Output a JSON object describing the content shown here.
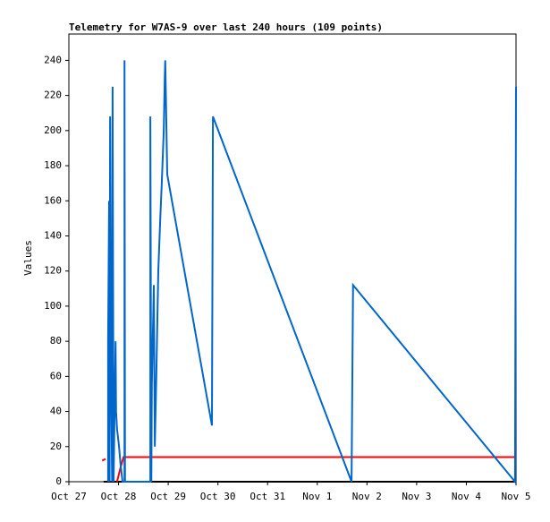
{
  "chart_data": {
    "type": "line",
    "title": "Telemetry for W7AS-9 over last 240 hours (109 points)",
    "y_label": "Values",
    "xlim": [
      0,
      9
    ],
    "xticks": [
      {
        "value": 0,
        "label": "Oct 27"
      },
      {
        "value": 1,
        "label": "Oct 28"
      },
      {
        "value": 2,
        "label": "Oct 29"
      },
      {
        "value": 3,
        "label": "Oct 30"
      },
      {
        "value": 4,
        "label": "Oct 31"
      },
      {
        "value": 5,
        "label": "Nov 1"
      },
      {
        "value": 6,
        "label": "Nov 2"
      },
      {
        "value": 7,
        "label": "Nov 3"
      },
      {
        "value": 8,
        "label": "Nov 4"
      },
      {
        "value": 9,
        "label": "Nov 5"
      }
    ],
    "ylim": [
      0,
      255
    ],
    "yticks": [
      0,
      20,
      40,
      60,
      80,
      100,
      120,
      140,
      160,
      180,
      200,
      220,
      240
    ],
    "series": [
      {
        "color": "#000000",
        "x": [
          0.7,
          9
        ],
        "values": [
          0,
          0
        ]
      },
      {
        "color": "#ff0000",
        "x": [
          0.67,
          0.74,
          0.8,
          0.97,
          1.04,
          1.1,
          9
        ],
        "values": [
          12,
          13,
          null,
          0,
          8,
          14,
          14
        ]
      },
      {
        "color": "#0066cc",
        "x": [
          0.79,
          0.79,
          0.81,
          0.82,
          0.83,
          0.85,
          0.87,
          0.88,
          0.9,
          0.94,
          0.95,
          0.97,
          1.01,
          1.04,
          1.08,
          1.12,
          1.12,
          1.13,
          1.64,
          1.64,
          1.66,
          1.67,
          1.71,
          1.73,
          1.76,
          1.8,
          1.84,
          1.87,
          1.91,
          1.93,
          1.94,
          1.98,
          2.88,
          2.9,
          5.69,
          5.72,
          8.98,
          9.0
        ],
        "values": [
          0,
          80,
          160,
          0,
          208,
          65,
          0,
          225,
          0,
          80,
          40,
          30,
          20,
          10,
          0,
          0,
          240,
          0,
          0,
          208,
          0,
          55,
          112,
          20,
          60,
          120,
          150,
          170,
          200,
          230,
          240,
          175,
          32,
          208,
          0,
          112,
          0,
          225
        ]
      }
    ]
  }
}
